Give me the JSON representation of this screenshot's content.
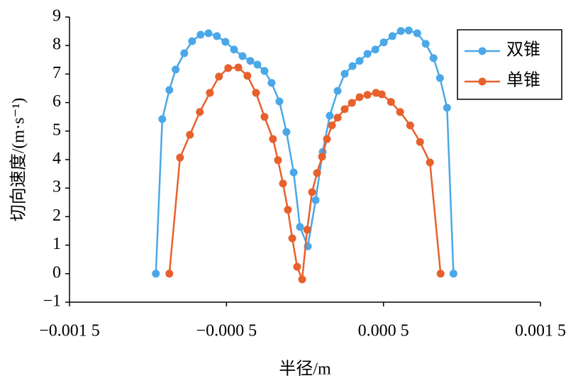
{
  "chart_data": {
    "type": "line",
    "x_label": "半径/m",
    "y_label": "切向速度/(m·s⁻¹)",
    "xlim": [
      -0.0015,
      0.0015
    ],
    "xticks": [
      {
        "value": -0.0015,
        "label": "−0.001 5"
      },
      {
        "value": -0.0005,
        "label": "−0.000 5"
      },
      {
        "value": 0.0005,
        "label": "0.000 5"
      },
      {
        "value": 0.0015,
        "label": "0.001 5"
      }
    ],
    "ylim": [
      -1,
      9
    ],
    "yticks": [
      {
        "value": -1,
        "label": "−1"
      },
      0,
      1,
      2,
      3,
      4,
      5,
      6,
      7,
      8,
      9
    ],
    "legend": "upper right",
    "series": [
      {
        "name": "双锥",
        "color": "#4aa8e8",
        "x": [
          -0.00095,
          -0.000909,
          -0.000864,
          -0.000824,
          -0.000769,
          -0.000719,
          -0.000665,
          -0.000615,
          -0.000561,
          -0.000507,
          -0.000452,
          -0.000398,
          -0.000348,
          -0.000303,
          -0.000258,
          -0.000213,
          -0.000163,
          -0.000118,
          -7.2e-05,
          -3.2e-05,
          1.8e-05,
          6.8e-05,
          0.000113,
          0.000158,
          0.000208,
          0.000253,
          0.000303,
          0.000348,
          0.000398,
          0.000448,
          0.000502,
          0.000557,
          0.000611,
          0.000661,
          0.000715,
          0.000769,
          0.000819,
          0.00086,
          0.000905,
          0.000946
        ],
        "values": [
          0,
          5.42,
          6.44,
          7.16,
          7.73,
          8.15,
          8.38,
          8.43,
          8.33,
          8.13,
          7.86,
          7.63,
          7.46,
          7.33,
          7.11,
          6.69,
          6.04,
          4.97,
          3.55,
          1.64,
          0.96,
          2.58,
          4.27,
          5.54,
          6.41,
          7.01,
          7.28,
          7.46,
          7.71,
          7.86,
          8.11,
          8.33,
          8.51,
          8.53,
          8.43,
          8.06,
          7.56,
          6.86,
          5.82,
          0
        ]
      },
      {
        "name": "单锥",
        "color": "#e8602c",
        "x": [
          -0.000864,
          -0.000796,
          -0.000733,
          -0.00067,
          -0.000606,
          -0.000548,
          -0.000489,
          -0.000425,
          -0.000367,
          -0.000312,
          -0.000258,
          -0.000204,
          -0.000172,
          -0.00014,
          -0.000109,
          -8.1e-05,
          -5e-05,
          -1.8e-05,
          1.4e-05,
          4.5e-05,
          7.7e-05,
          0.000109,
          0.00014,
          0.000172,
          0.000208,
          0.000253,
          0.000299,
          0.000348,
          0.000398,
          0.000452,
          0.000489,
          0.000548,
          0.000606,
          0.00067,
          0.000733,
          0.000796,
          0.000864
        ],
        "values": [
          0,
          4.07,
          4.87,
          5.67,
          6.34,
          6.91,
          7.21,
          7.23,
          6.94,
          6.34,
          5.5,
          4.72,
          3.98,
          3.16,
          2.24,
          1.24,
          0.24,
          -0.2,
          1.54,
          2.86,
          3.53,
          4.1,
          4.72,
          5.2,
          5.47,
          5.77,
          5.99,
          6.19,
          6.27,
          6.34,
          6.29,
          6.02,
          5.67,
          5.2,
          4.62,
          3.9,
          0
        ]
      }
    ]
  }
}
